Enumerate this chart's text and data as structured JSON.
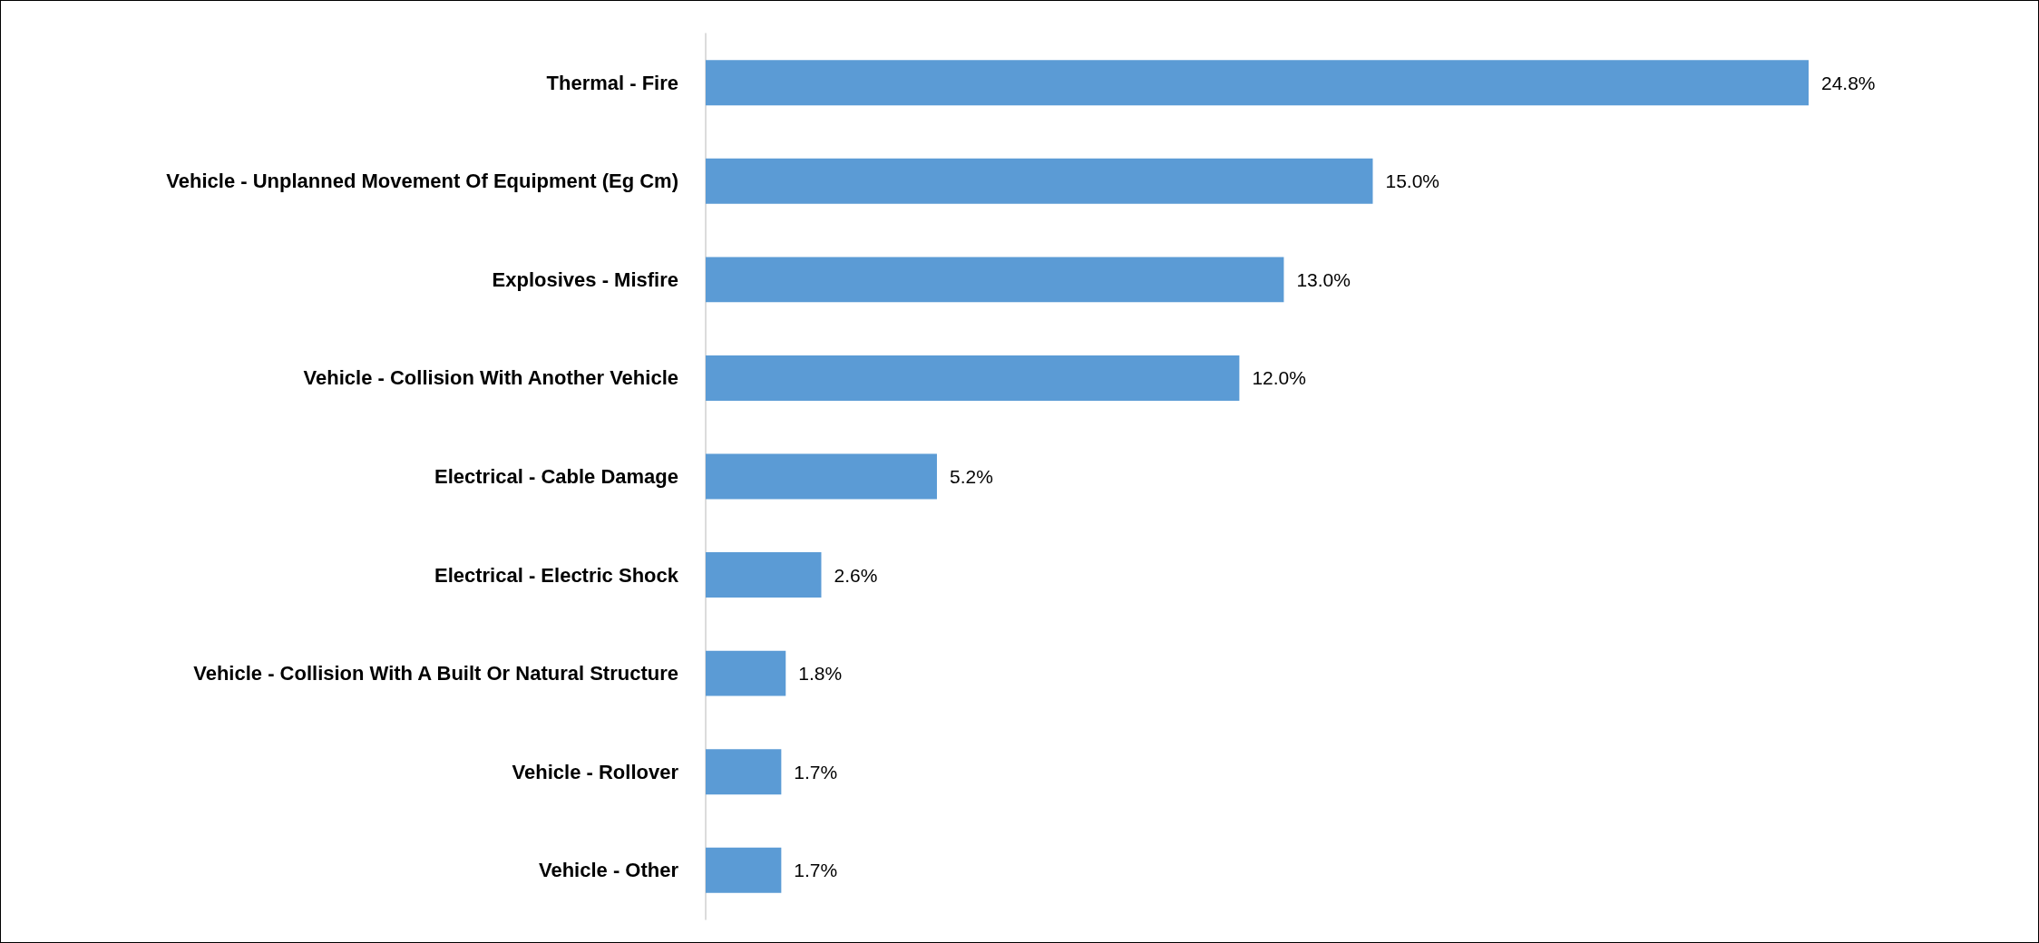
{
  "chart_data": {
    "type": "bar",
    "orientation": "horizontal",
    "categories": [
      "Thermal - Fire",
      "Vehicle - Unplanned Movement Of Equipment (Eg Cm)",
      "Explosives - Misfire",
      "Vehicle - Collision With Another Vehicle",
      "Electrical - Cable Damage",
      "Electrical - Electric Shock",
      "Vehicle - Collision With A Built Or Natural Structure",
      "Vehicle - Rollover",
      "Vehicle - Other"
    ],
    "values": [
      24.8,
      15.0,
      13.0,
      12.0,
      5.2,
      2.6,
      1.8,
      1.7,
      1.7
    ],
    "value_labels": [
      "24.8%",
      "15.0%",
      "13.0%",
      "12.0%",
      "5.2%",
      "2.6%",
      "1.8%",
      "1.7%",
      "1.7%"
    ],
    "color": "#5b9bd5",
    "grid": false
  }
}
